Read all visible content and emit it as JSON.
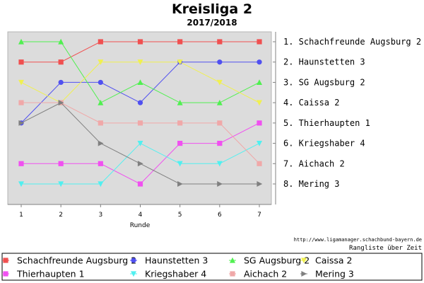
{
  "chart_data": {
    "type": "line",
    "title": "Kreisliga 2",
    "subtitle": "2017/2018",
    "xlabel": "Runde",
    "ylabel": "",
    "x": [
      1,
      2,
      3,
      4,
      5,
      6,
      7
    ],
    "ylim": [
      1,
      8
    ],
    "y_inverted": true,
    "grid": false,
    "legend_position": "bottom",
    "series": [
      {
        "name": "Schachfreunde Augsburg 2",
        "color": "#f05050",
        "marker": "square",
        "values": [
          2,
          2,
          1,
          1,
          1,
          1,
          1
        ]
      },
      {
        "name": "Haunstetten 3",
        "color": "#5050f0",
        "marker": "circle",
        "values": [
          5,
          3,
          3,
          4,
          2,
          2,
          2
        ]
      },
      {
        "name": "SG Augsburg 2",
        "color": "#50f050",
        "marker": "triangle-up",
        "values": [
          1,
          1,
          4,
          3,
          4,
          4,
          3
        ]
      },
      {
        "name": "Caissa 2",
        "color": "#f0f050",
        "marker": "triangle-down",
        "values": [
          3,
          4,
          2,
          2,
          2,
          3,
          4
        ]
      },
      {
        "name": "Thierhaupten 1",
        "color": "#f050f0",
        "marker": "square",
        "values": [
          7,
          7,
          7,
          8,
          6,
          6,
          5
        ]
      },
      {
        "name": "Kriegshaber 4",
        "color": "#50f0f0",
        "marker": "triangle-down",
        "values": [
          8,
          8,
          8,
          6,
          7,
          7,
          6
        ]
      },
      {
        "name": "Aichach 2",
        "color": "#f0a8a8",
        "marker": "square",
        "values": [
          4,
          4,
          5,
          5,
          5,
          5,
          7
        ]
      },
      {
        "name": "Mering 3",
        "color": "#808080",
        "marker": "triangle-right",
        "values": [
          5,
          4,
          6,
          7,
          8,
          8,
          8
        ]
      }
    ]
  },
  "rank_labels": [
    "1. Schachfreunde Augsburg 2",
    "2. Haunstetten 3",
    "3. SG Augsburg 2",
    "4. Caissa 2",
    "5. Thierhaupten 1",
    "6. Kriegshaber 4",
    "7. Aichach 2",
    "8. Mering 3"
  ],
  "credit": {
    "url": "http://www.ligamanager.schachbund-bayern.de",
    "text": "Rangliste über Zeit"
  },
  "colors": {
    "plot_background": "#dcdcdc",
    "legend_border": "#000000"
  }
}
